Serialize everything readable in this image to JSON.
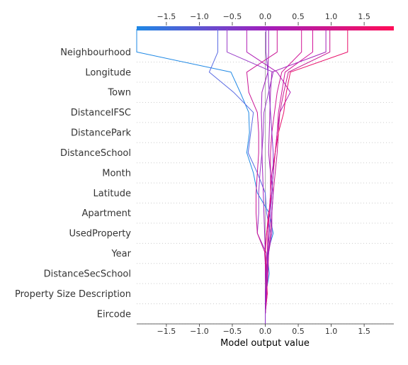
{
  "chart_data": {
    "type": "line",
    "title": "",
    "xlabel": "Model output value",
    "ylabel": "",
    "xlim": [
      -1.95,
      1.95
    ],
    "xticks": [
      "-1.5",
      "-1.0",
      "-0.5",
      "0.0",
      "0.5",
      "1.0",
      "1.5"
    ],
    "xtick_values": [
      -1.5,
      -1.0,
      -0.5,
      0.0,
      0.5,
      1.0,
      1.5
    ],
    "base_value": 0.0,
    "features": [
      "Eircode",
      "Property Size Description",
      "DistanceSecSchool",
      "Year",
      "UsedProperty",
      "Apartment",
      "Latitude",
      "Month",
      "DistanceSchool",
      "DistancePark",
      "DistanceIFSC",
      "Town",
      "Longitude",
      "Neighbourhood"
    ],
    "colorbar": {
      "low_color": "#1E88E5",
      "high_color": "#FF0D57"
    },
    "grid": "horizontal-dotted",
    "series": [
      {
        "color": "#1E88E5",
        "values": [
          0.0,
          0.01,
          0.06,
          0.03,
          0.12,
          0.06,
          -0.12,
          -0.18,
          -0.28,
          -0.24,
          -0.25,
          -0.38,
          -0.52,
          -1.95
        ]
      },
      {
        "color": "#5A6BE3",
        "values": [
          0.0,
          0.02,
          0.0,
          0.05,
          0.08,
          0.02,
          0.0,
          -0.12,
          -0.26,
          -0.22,
          -0.18,
          -0.48,
          -0.85,
          -0.72
        ]
      },
      {
        "color": "#9A3FC8",
        "values": [
          0.0,
          0.01,
          0.0,
          0.02,
          -0.12,
          -0.1,
          -0.1,
          -0.08,
          -0.05,
          -0.03,
          -0.02,
          0.05,
          0.12,
          -0.58
        ]
      },
      {
        "color": "#B020B5",
        "values": [
          0.0,
          0.03,
          0.01,
          -0.01,
          0.02,
          0.06,
          0.1,
          0.12,
          0.15,
          0.18,
          0.22,
          0.38,
          0.18,
          -0.28
        ]
      },
      {
        "color": "#A01FBD",
        "values": [
          0.0,
          0.01,
          0.0,
          0.0,
          -0.01,
          -0.02,
          -0.03,
          -0.04,
          -0.05,
          -0.05,
          -0.06,
          -0.05,
          0.04,
          0.05
        ]
      },
      {
        "color": "#C91594",
        "values": [
          0.0,
          0.0,
          0.01,
          0.0,
          -0.12,
          -0.14,
          -0.14,
          -0.12,
          -0.1,
          -0.1,
          -0.12,
          -0.25,
          -0.28,
          0.18
        ]
      },
      {
        "color": "#D2129A",
        "values": [
          0.0,
          0.02,
          0.04,
          0.05,
          0.04,
          0.06,
          0.08,
          0.1,
          0.15,
          0.18,
          0.2,
          0.25,
          0.3,
          0.72
        ]
      },
      {
        "color": "#C7168F",
        "values": [
          0.0,
          0.02,
          0.03,
          0.05,
          0.08,
          0.1,
          0.12,
          0.15,
          0.18,
          0.2,
          0.22,
          0.28,
          0.35,
          0.98
        ]
      },
      {
        "color": "#E8106A",
        "values": [
          0.0,
          0.03,
          0.02,
          0.0,
          0.02,
          0.05,
          0.1,
          0.12,
          0.15,
          0.2,
          0.28,
          0.32,
          0.38,
          1.25
        ]
      },
      {
        "color": "#D01396",
        "values": [
          0.0,
          0.02,
          0.02,
          0.03,
          0.04,
          0.06,
          0.08,
          0.08,
          0.08,
          0.1,
          0.14,
          0.18,
          0.25,
          0.55
        ]
      },
      {
        "color": "#A320B8",
        "values": [
          0.0,
          0.0,
          0.02,
          0.05,
          0.1,
          0.1,
          0.12,
          0.08,
          0.05,
          0.06,
          0.07,
          0.08,
          0.1,
          0.92
        ]
      },
      {
        "color": "#8C2FC9",
        "values": [
          0.0,
          0.01,
          0.02,
          0.04,
          0.06,
          0.08,
          0.1,
          0.12,
          0.12,
          0.1,
          0.08,
          0.06,
          0.04,
          0.01
        ]
      }
    ]
  }
}
